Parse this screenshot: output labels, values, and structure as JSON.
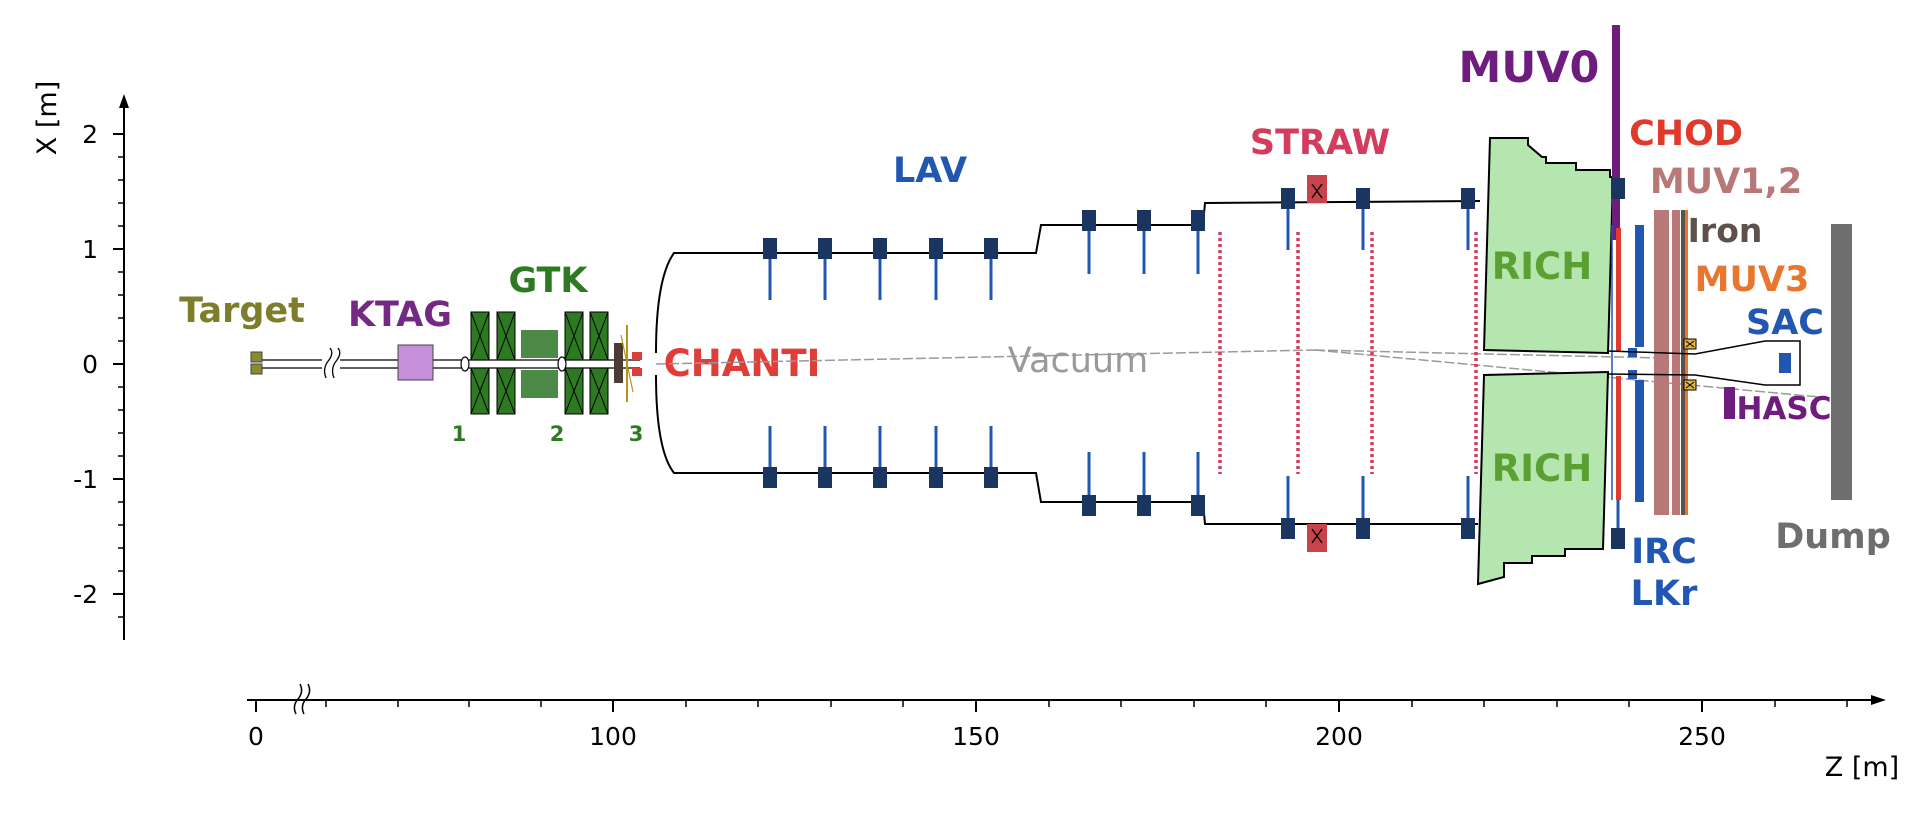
{
  "axes": {
    "x_axis_label": "X [m]",
    "z_axis_label": "Z [m]",
    "x_ticks": [
      "2",
      "1",
      "0",
      "-1",
      "-2"
    ],
    "z_ticks": [
      "0",
      "100",
      "150",
      "200",
      "250"
    ]
  },
  "labels": {
    "target": "Target",
    "ktag": "KTAG",
    "gtk": "GTK",
    "gtk_stations": [
      "1",
      "2",
      "3"
    ],
    "chanti": "CHANTI",
    "lav": "LAV",
    "vacuum": "Vacuum",
    "straw": "STRAW",
    "rich_top": "RICH",
    "rich_bottom": "RICH",
    "muv0": "MUV0",
    "chod": "CHOD",
    "muv12": "MUV1,2",
    "iron": "Iron",
    "muv3": "MUV3",
    "sac": "SAC",
    "hasc": "HASC",
    "irc": "IRC",
    "lkr": "LKr",
    "dump": "Dump"
  },
  "colors": {
    "target": "#7d7d2a",
    "ktag_label": "#742a85",
    "ktag_box": "#c58fd9",
    "gtk": "#2e7a23",
    "gtk_block": "#4e8a47",
    "chanti": "#e03c38",
    "lav": "#2257b1",
    "lav_block": "#1a3560",
    "straw": "#d43b5c",
    "rich_fill": "#b6e6b0",
    "rich_text": "#5aa032",
    "muv0": "#6e1c7e",
    "chod": "#e03a2c",
    "muv12": "#b87878",
    "iron": "#5f5149",
    "muv3": "#e8762e",
    "sac": "#2257b1",
    "hasc": "#6e1c7e",
    "dump": "#6e6e6e",
    "vacuum": "#9a9a9a"
  }
}
